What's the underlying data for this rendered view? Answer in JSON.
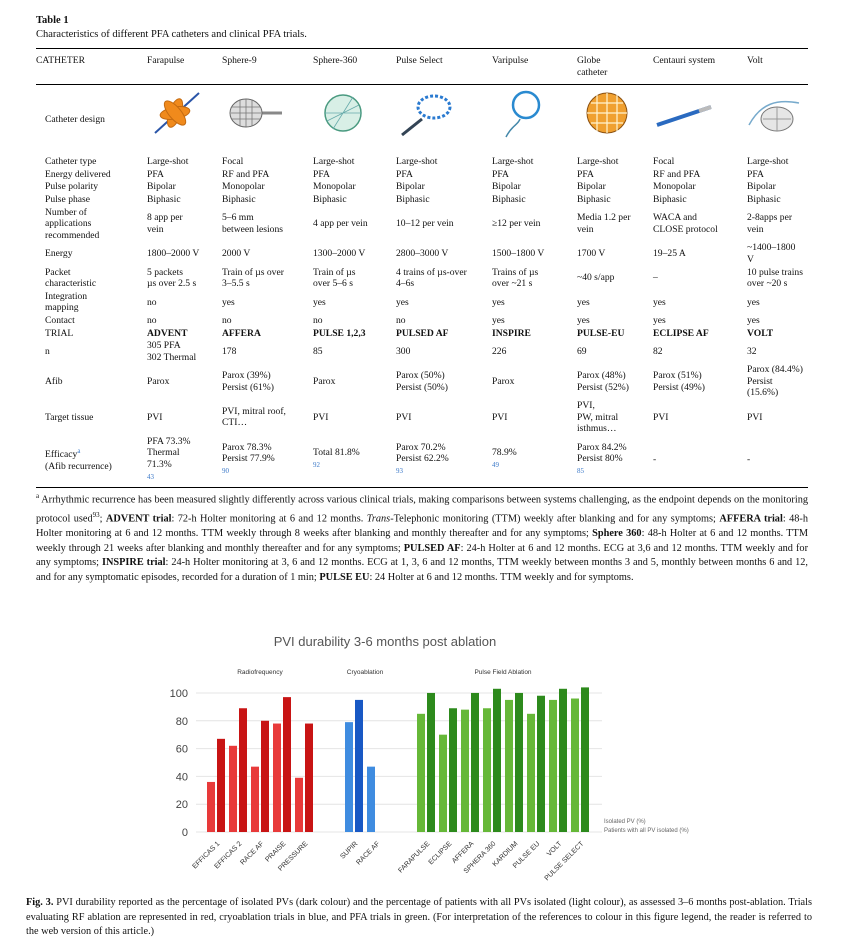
{
  "table": {
    "label": "Table 1",
    "caption": "Characteristics of different PFA catheters and clinical PFA trials.",
    "header": [
      "CATHETER",
      "Farapulse",
      "Sphere-9",
      "Sphere-360",
      "Pulse Select",
      "Varipulse",
      "Globe\ncatheter",
      "Centauri system",
      "Volt"
    ],
    "design_label": "Catheter design",
    "rows": [
      {
        "label": "Catheter type",
        "cells": [
          "Large-shot",
          "Focal",
          "Large-shot",
          "Large-shot",
          "Large-shot",
          "Large-shot",
          "Focal",
          "Large-shot"
        ]
      },
      {
        "label": "Energy delivered",
        "cells": [
          "PFA",
          "RF and PFA",
          "PFA",
          "PFA",
          "PFA",
          "PFA",
          "RF and PFA",
          "PFA"
        ]
      },
      {
        "label": "Pulse polarity",
        "cells": [
          "Bipolar",
          "Monopolar",
          "Monopolar",
          "Bipolar",
          "Bipolar",
          "Bipolar",
          "Monopolar",
          "Bipolar"
        ]
      },
      {
        "label": "Pulse phase",
        "cells": [
          "Biphasic",
          "Biphasic",
          "Biphasic",
          "Biphasic",
          "Biphasic",
          "Biphasic",
          "Biphasic",
          "Biphasic"
        ]
      },
      {
        "label": "Number of\napplications\nrecommended",
        "cells": [
          "8 app per\nvein",
          "5–6 mm\nbetween lesions",
          "4 app per vein",
          "10–12 per vein",
          "≥12 per vein",
          "Media 1.2 per\nvein",
          "WACA and\nCLOSE protocol",
          "2-8apps per vein"
        ]
      },
      {
        "label": "Energy",
        "cells": [
          "1800–2000 V",
          "2000 V",
          "1300–2000 V",
          "2800–3000 V",
          "1500–1800 V",
          "1700 V",
          "19–25 A",
          "~1400–1800 V"
        ]
      },
      {
        "label": "Packet\ncharacteristic",
        "cells": [
          "5 packets\nµs over 2.5 s",
          "Train of µs over\n3–5.5 s",
          "Train of µs\nover 5–6 s",
          "4 trains of µs-over\n4–6s",
          "Trains of µs\nover ~21 s",
          "~40 s/app",
          "–",
          "10 pulse trains\nover ~20 s"
        ]
      },
      {
        "label": "Integration\nmapping",
        "cells": [
          "no",
          "yes",
          "yes",
          "yes",
          "yes",
          "yes",
          "yes",
          "yes"
        ]
      },
      {
        "label": "Contact",
        "cells": [
          "no",
          "no",
          "no",
          "no",
          "yes",
          "yes",
          "yes",
          "yes"
        ]
      },
      {
        "label": "TRIAL",
        "bold": true,
        "cells": [
          "ADVENT",
          "AFFERA",
          "PULSE 1,2,3",
          "PULSED AF",
          "INSPIRE",
          "PULSE-EU",
          "ECLIPSE AF",
          "VOLT"
        ]
      },
      {
        "label": "n",
        "cells": [
          "305 PFA\n302 Thermal",
          "178",
          "85",
          "300",
          "226",
          "69",
          "82",
          "32"
        ]
      },
      {
        "label": "Afib",
        "cells": [
          "Parox",
          "Parox (39%)\nPersist (61%)",
          "Parox",
          "Parox (50%)\nPersist (50%)",
          "Parox",
          "Parox (48%)\nPersist (52%)",
          "Parox (51%)\nPersist (49%)",
          "Parox (84.4%)\nPersist (15.6%)"
        ]
      },
      {
        "label": "Target tissue",
        "cells": [
          "PVI",
          "PVI, mitral roof,\nCTI…",
          "PVI",
          "PVI",
          "PVI",
          "PVI,\nPW, mitral\nisthmus…",
          "PVI",
          "PVI"
        ]
      },
      {
        "label": "Efficacy",
        "label_sup": "a",
        "label_note": "(Afib recurrence)",
        "cells": [
          "PFA 73.3%\nThermal\n71.3%",
          "Parox 78.3%\nPersist 77.9%",
          "Total 81.8%",
          "Parox 70.2%\nPersist 62.2%",
          "78.9%",
          "Parox 84.2%\nPersist 80%",
          "-",
          "-"
        ],
        "refs": [
          "43",
          "90",
          "92",
          "93",
          "49",
          "85"
        ]
      }
    ]
  },
  "footnote": [
    {
      "style": "sup",
      "text": "a"
    },
    {
      "style": "normal",
      "text": " Arrhythmic recurrence has been measured slightly differently across various clinical trials, making comparisons between systems challenging, as the endpoint depends on the monitoring protocol used"
    },
    {
      "style": "sup",
      "text": "93"
    },
    {
      "style": "normal",
      "text": "; "
    },
    {
      "style": "bold",
      "text": "ADVENT trial"
    },
    {
      "style": "normal",
      "text": ": 72-h Holter monitoring at 6 and 12 months. "
    },
    {
      "style": "italic",
      "text": "Trans"
    },
    {
      "style": "normal",
      "text": "-Telephonic monitoring (TTM) weekly after blanking and for any symptoms; "
    },
    {
      "style": "bold",
      "text": "AFFERA trial"
    },
    {
      "style": "normal",
      "text": ": 48-h Holter monitoring at 6 and 12 months. TTM weekly through 8 weeks after blanking and monthly thereafter and for any symptoms; "
    },
    {
      "style": "bold",
      "text": "Sphere 360"
    },
    {
      "style": "normal",
      "text": ": 48-h Holter at 6 and 12 months. TTM weekly through 21 weeks after blanking and monthly thereafter and for any symptoms; "
    },
    {
      "style": "bold",
      "text": "PULSED AF"
    },
    {
      "style": "normal",
      "text": ": 24-h Holter at 6 and 12 months. ECG at 3,6 and 12 months. TTM weekly and for any symptoms; "
    },
    {
      "style": "bold",
      "text": "INSPIRE trial"
    },
    {
      "style": "normal",
      "text": ": 24-h Holter monitoring at 3, 6 and 12 months. ECG at 1, 3, 6 and 12 months, TTM weekly between months 3 and 5, monthly between months 6 and 12, and for any symptomatic episodes, recorded for a duration of 1 min; "
    },
    {
      "style": "bold",
      "text": "PULSE EU"
    },
    {
      "style": "normal",
      "text": ": 24 Holter at 6 and 12 months. TTM weekly and for symptoms."
    }
  ],
  "chart_data": {
    "type": "bar",
    "title": "PVI durability 3-6 months post ablation",
    "groups": [
      {
        "label": "Radiofrequency",
        "dark": "#c81414",
        "light": "#e83a3a",
        "categories": [
          "EFFICAS 1",
          "EFFICAS 2",
          "RACE AF",
          "PRAISE",
          "PRESSURE"
        ]
      },
      {
        "label": "Cryoablation",
        "dark": "#1858c4",
        "light": "#3f8ce0",
        "categories": [
          "SUPIR",
          "RACE AF"
        ]
      },
      {
        "label": "Pulse Field Ablation",
        "dark": "#2d8a1c",
        "light": "#66b838",
        "categories": [
          "FARAPULSE",
          "ECLIPSE",
          "AFFERA",
          "SPHERA 360",
          "KARDIUM",
          "PULSE EU",
          "VOLT",
          "PULSE SELECT"
        ]
      }
    ],
    "series": [
      {
        "name": "Isolated PV (%)",
        "shade": "dark",
        "values": [
          67,
          89,
          80,
          97,
          78,
          95,
          null,
          100,
          89,
          100,
          103,
          100,
          98,
          103,
          104
        ]
      },
      {
        "name": "Patients with all PV isolated (%)",
        "shade": "light",
        "values": [
          36,
          62,
          47,
          78,
          39,
          79,
          47,
          85,
          70,
          88,
          89,
          95,
          85,
          95,
          96
        ]
      }
    ],
    "ylim": [
      0,
      105
    ],
    "yticks": [
      0,
      20,
      40,
      60,
      80,
      100
    ],
    "grid": true
  },
  "figure_caption": {
    "label": "Fig. 3.",
    "text": "PVI durability reported as the percentage of isolated PVs (dark colour) and the percentage of patients with all PVs isolated (light colour), as assessed 3–6 months post-ablation. Trials evaluating RF ablation are represented in red, cryoablation trials in blue, and PFA trials in green. (For interpretation of the references to colour in this figure legend, the reader is referred to the web version of this article.)"
  }
}
